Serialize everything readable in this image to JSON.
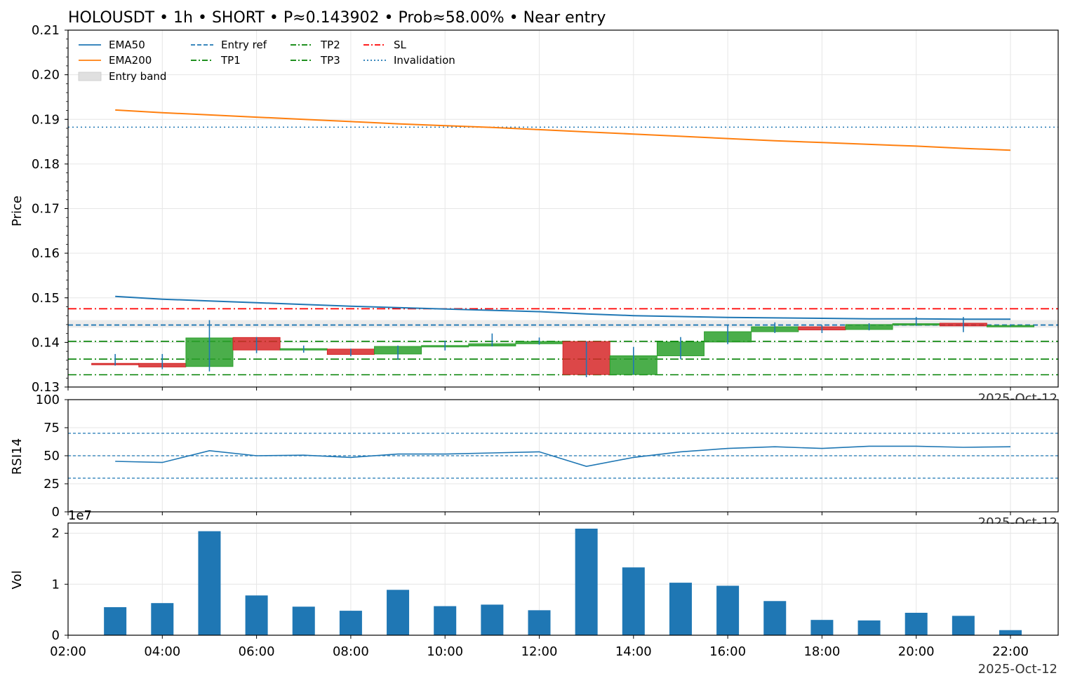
{
  "chart_data": [
    {
      "type": "candlestick",
      "title": "HOLOUSDT • 1h • SHORT • P≈0.143902 • Prob≈58.00% • Near entry",
      "ylabel": "Price",
      "ylim": [
        0.13,
        0.21
      ],
      "yticks": [
        "0.13",
        "0.14",
        "0.15",
        "0.16",
        "0.17",
        "0.18",
        "0.19",
        "0.20",
        "0.21"
      ],
      "date_label": "2025-Oct-12",
      "x_hours": [
        3,
        4,
        5,
        6,
        7,
        8,
        9,
        10,
        11,
        12,
        13,
        14,
        15,
        16,
        17,
        18,
        19,
        20,
        21,
        22
      ],
      "candles": [
        {
          "o": 0.1353,
          "h": 0.1374,
          "l": 0.1348,
          "c": 0.1352
        },
        {
          "o": 0.1353,
          "h": 0.1374,
          "l": 0.134,
          "c": 0.1345
        },
        {
          "o": 0.1346,
          "h": 0.145,
          "l": 0.1335,
          "c": 0.141
        },
        {
          "o": 0.1411,
          "h": 0.1412,
          "l": 0.1376,
          "c": 0.1383
        },
        {
          "o": 0.1384,
          "h": 0.1393,
          "l": 0.1377,
          "c": 0.1386
        },
        {
          "o": 0.1385,
          "h": 0.1386,
          "l": 0.1369,
          "c": 0.1373
        },
        {
          "o": 0.1374,
          "h": 0.1393,
          "l": 0.1361,
          "c": 0.1391
        },
        {
          "o": 0.1391,
          "h": 0.1404,
          "l": 0.1382,
          "c": 0.1393
        },
        {
          "o": 0.1392,
          "h": 0.142,
          "l": 0.1391,
          "c": 0.1397
        },
        {
          "o": 0.1397,
          "h": 0.1411,
          "l": 0.1395,
          "c": 0.1402
        },
        {
          "o": 0.1402,
          "h": 0.1402,
          "l": 0.1322,
          "c": 0.1328
        },
        {
          "o": 0.1328,
          "h": 0.139,
          "l": 0.1328,
          "c": 0.137
        },
        {
          "o": 0.137,
          "h": 0.1412,
          "l": 0.1362,
          "c": 0.1401
        },
        {
          "o": 0.1401,
          "h": 0.144,
          "l": 0.1396,
          "c": 0.1424
        },
        {
          "o": 0.1424,
          "h": 0.1445,
          "l": 0.1421,
          "c": 0.1435
        },
        {
          "o": 0.1435,
          "h": 0.1439,
          "l": 0.1421,
          "c": 0.1428
        },
        {
          "o": 0.1429,
          "h": 0.1443,
          "l": 0.1427,
          "c": 0.144
        },
        {
          "o": 0.144,
          "h": 0.1457,
          "l": 0.1437,
          "c": 0.1442
        },
        {
          "o": 0.1443,
          "h": 0.1457,
          "l": 0.1423,
          "c": 0.1437
        },
        {
          "o": 0.1437,
          "h": 0.144,
          "l": 0.1436,
          "c": 0.1438
        }
      ],
      "ema50": [
        0.1503,
        0.1497,
        0.1493,
        0.1489,
        0.1485,
        0.1481,
        0.1478,
        0.1475,
        0.1472,
        0.1469,
        0.1464,
        0.146,
        0.1458,
        0.1456,
        0.1455,
        0.1454,
        0.1453,
        0.1453,
        0.1452,
        0.1452
      ],
      "ema200": [
        0.1921,
        0.1915,
        0.191,
        0.1905,
        0.19,
        0.1895,
        0.189,
        0.1886,
        0.1882,
        0.1877,
        0.1872,
        0.1867,
        0.1862,
        0.1857,
        0.1852,
        0.1848,
        0.1844,
        0.184,
        0.1835,
        0.1831
      ],
      "levels": {
        "entry_ref": 0.1439,
        "entry_band": [
          0.1433,
          0.145
        ],
        "tp1": 0.14025,
        "tp2": 0.13625,
        "tp3": 0.13275,
        "sl": 0.14755,
        "invalidation": 0.18825
      },
      "legend": {
        "placement": "top-left",
        "entries": [
          "EMA50",
          "EMA200",
          "Entry band",
          "Entry ref",
          "TP1",
          "TP2",
          "TP3",
          "SL",
          "Invalidation"
        ]
      },
      "colors": {
        "up": "#2ca02c",
        "down": "#d62728",
        "wick": "#1f77b4",
        "ema50": "#1f77b4",
        "ema200": "#ff7f0e",
        "entry": "#1f77b4",
        "tp": "#008000",
        "sl": "#ff0000",
        "band": "#e0e0e0"
      },
      "grid": true
    },
    {
      "type": "line",
      "ylabel": "RSI14",
      "ylim": [
        0,
        100
      ],
      "yticks": [
        "0",
        "25",
        "50",
        "75",
        "100"
      ],
      "date_label": "2025-Oct-12",
      "x_hours": [
        3,
        4,
        5,
        6,
        7,
        8,
        9,
        10,
        11,
        12,
        13,
        14,
        15,
        16,
        17,
        18,
        19,
        20,
        21,
        22
      ],
      "values": [
        45,
        44,
        54.5,
        50,
        50.5,
        48.5,
        51.5,
        51.5,
        52.5,
        53.5,
        40.5,
        48.5,
        53.5,
        56.5,
        58,
        56.5,
        58.5,
        58.5,
        57.5,
        58
      ],
      "reference_lines": [
        30,
        50,
        70
      ],
      "grid": true
    },
    {
      "type": "bar",
      "ylabel": "Vol",
      "offset_label": "1e7",
      "ylim": [
        0,
        2.2
      ],
      "yticks": [
        "0",
        "1",
        "2"
      ],
      "x_hours": [
        3,
        4,
        5,
        6,
        7,
        8,
        9,
        10,
        11,
        12,
        13,
        14,
        15,
        16,
        17,
        18,
        19,
        20,
        21,
        22
      ],
      "values": [
        0.55,
        0.63,
        2.04,
        0.78,
        0.56,
        0.48,
        0.89,
        0.57,
        0.6,
        0.49,
        2.09,
        1.33,
        1.03,
        0.97,
        0.67,
        0.3,
        0.29,
        0.44,
        0.38,
        0.1
      ],
      "xticks": [
        "02:00",
        "04:00",
        "06:00",
        "08:00",
        "10:00",
        "12:00",
        "14:00",
        "16:00",
        "18:00",
        "20:00",
        "22:00"
      ],
      "date_label": "2025-Oct-12",
      "grid": true
    }
  ]
}
